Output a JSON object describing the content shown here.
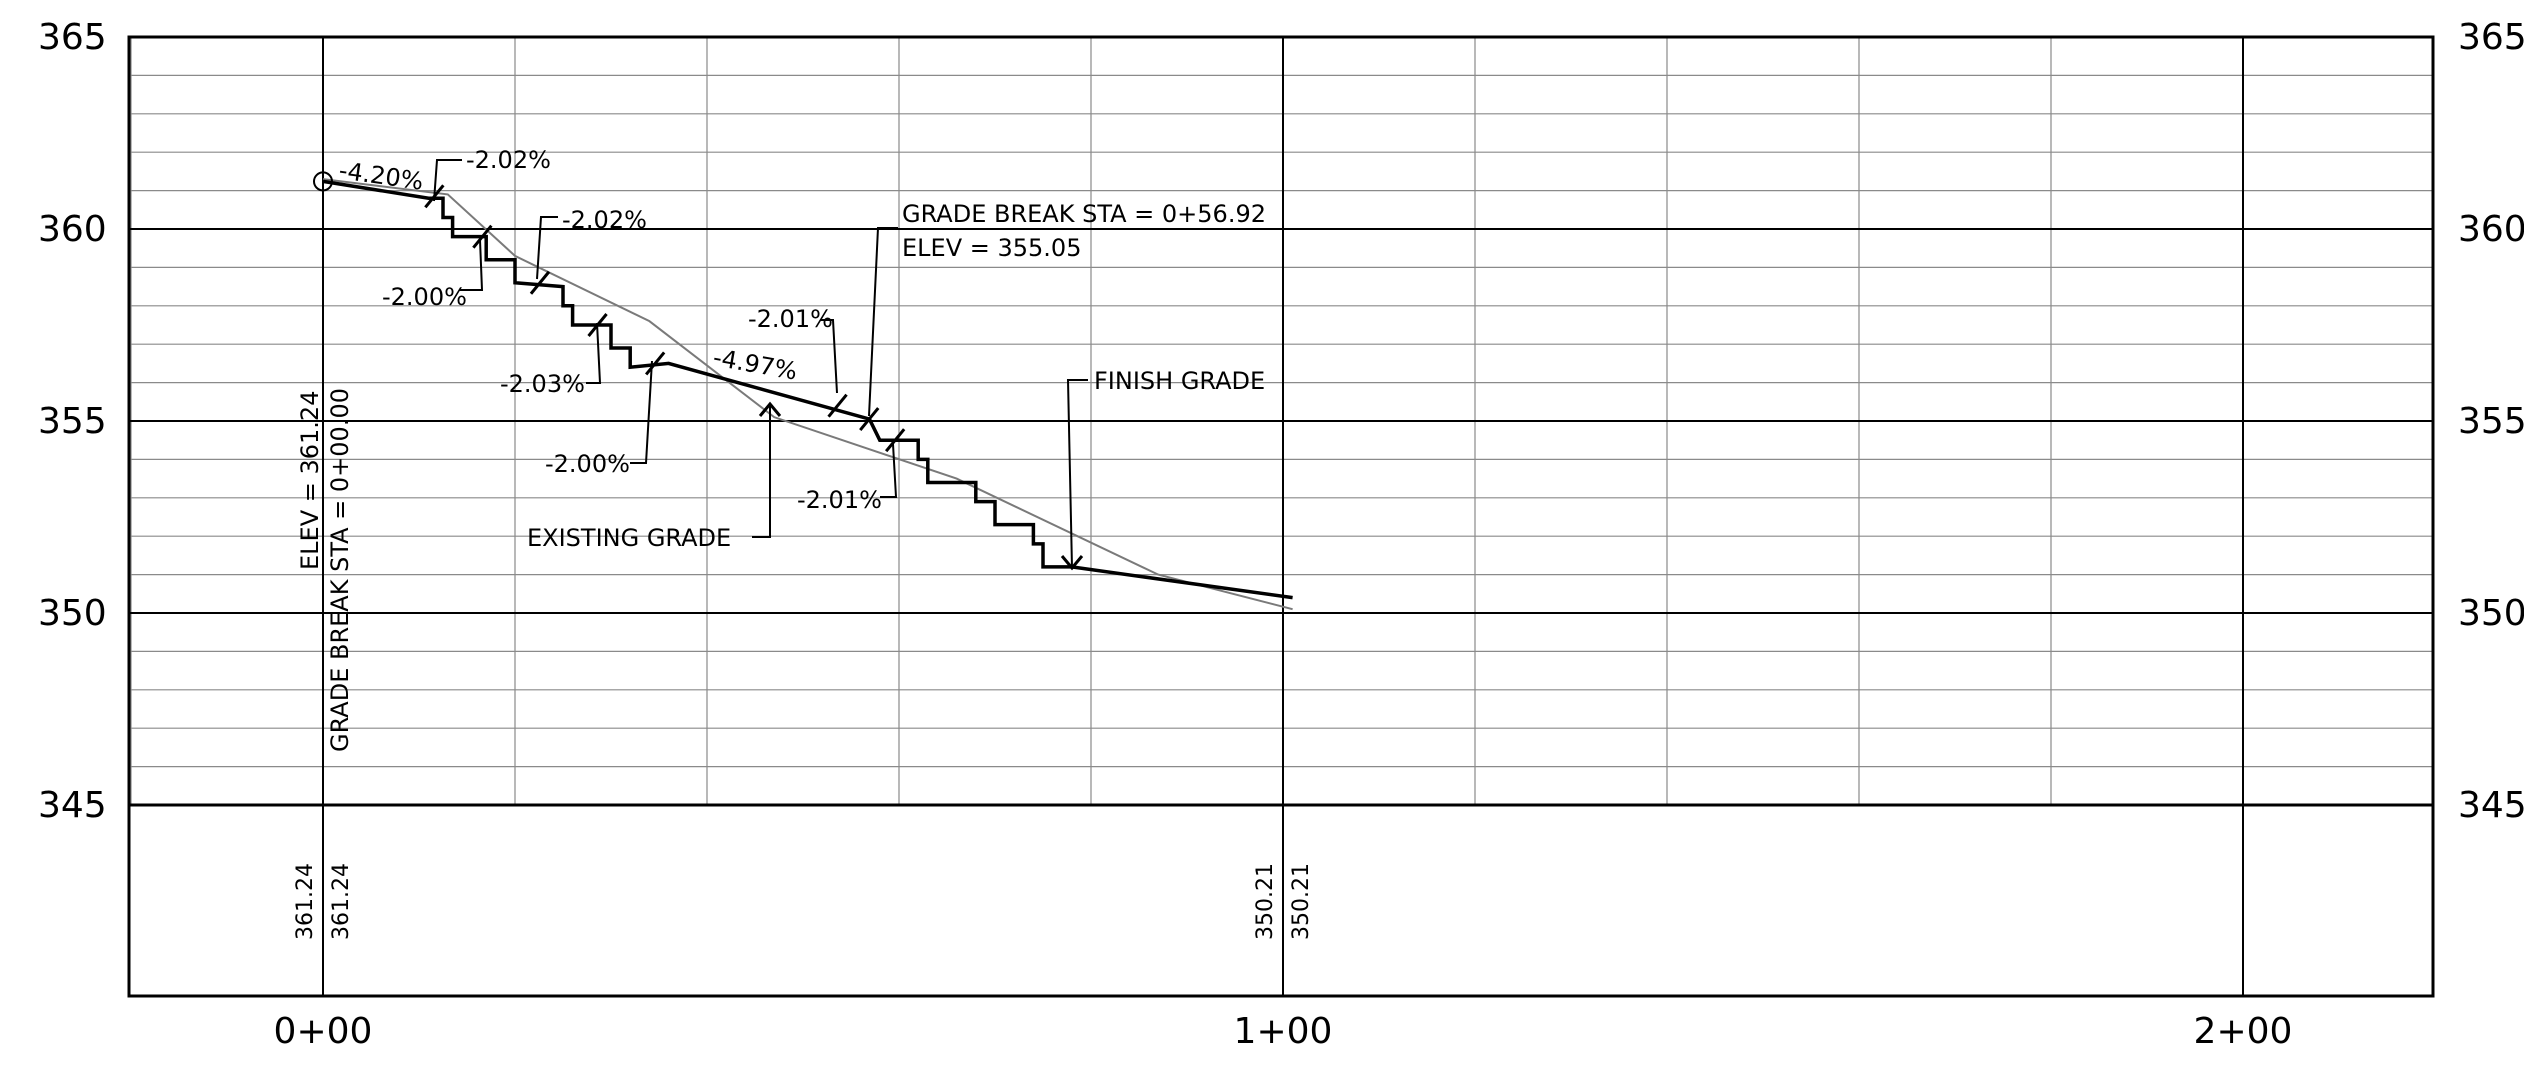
{
  "chart_data": {
    "type": "profile",
    "x_axis": {
      "ticks": [
        0,
        100,
        200
      ],
      "tick_labels": [
        "0+00",
        "1+00",
        "2+00"
      ],
      "range": [
        -20,
        220
      ]
    },
    "y_axis": {
      "range": [
        345,
        365
      ],
      "major_ticks": [
        345,
        350,
        355,
        360,
        365
      ],
      "tick_labels": [
        "345",
        "350",
        "355",
        "360",
        "365"
      ],
      "labels_both_sides": true,
      "minor_gridline_step": 1
    },
    "grid": true,
    "series": [
      {
        "name": "EXISTING GRADE",
        "style": "thin gray",
        "points": [
          [
            0,
            361.3
          ],
          [
            13,
            360.9
          ],
          [
            20,
            359.3
          ],
          [
            34,
            357.6
          ],
          [
            47,
            355.1
          ],
          [
            66,
            353.5
          ],
          [
            87,
            351.0
          ],
          [
            101,
            350.1
          ]
        ]
      },
      {
        "name": "FINISH GRADE",
        "style": "thick black stepped",
        "points": [
          [
            0,
            361.24
          ],
          [
            11,
            360.8
          ],
          [
            12.5,
            360.8
          ],
          [
            12.5,
            360.3
          ],
          [
            13.5,
            360.3
          ],
          [
            13.5,
            359.8
          ],
          [
            17,
            359.8
          ],
          [
            17,
            359.2
          ],
          [
            20,
            359.2
          ],
          [
            20,
            358.6
          ],
          [
            25,
            358.5
          ],
          [
            25,
            358.0
          ],
          [
            26,
            358.0
          ],
          [
            26,
            357.5
          ],
          [
            30,
            357.5
          ],
          [
            30,
            356.9
          ],
          [
            32,
            356.9
          ],
          [
            32,
            356.4
          ],
          [
            36,
            356.5
          ],
          [
            56.92,
            355.05
          ],
          [
            58,
            354.5
          ],
          [
            62,
            354.5
          ],
          [
            62,
            354.0
          ],
          [
            63,
            354.0
          ],
          [
            63,
            353.4
          ],
          [
            68,
            353.4
          ],
          [
            68,
            352.9
          ],
          [
            70,
            352.9
          ],
          [
            70,
            352.3
          ],
          [
            74,
            352.3
          ],
          [
            74,
            351.8
          ],
          [
            75,
            351.8
          ],
          [
            75,
            351.2
          ],
          [
            78,
            351.2
          ],
          [
            101,
            350.4
          ]
        ]
      }
    ],
    "grade_breaks": [
      {
        "station": 0,
        "elevation": 361.24
      },
      {
        "station": 56.92,
        "elevation": 355.05
      }
    ],
    "bottom_values": [
      {
        "station": 0,
        "values": [
          "361.24",
          "361.24"
        ]
      },
      {
        "station": 100,
        "values": [
          "350.21",
          "350.21"
        ]
      }
    ],
    "annotations": {
      "slope_labels": [
        "-4.20%",
        "-2.02%",
        "-2.02%",
        "-2.00%",
        "-2.03%",
        "-2.00%",
        "-4.97%",
        "-2.01%",
        "-2.01%"
      ],
      "callouts": [
        "GRADE BREAK STA = 0+56.92",
        "ELEV =  355.05",
        "FINISH GRADE",
        "EXISTING GRADE"
      ],
      "rotated": [
        "ELEV =  361.24",
        "GRADE BREAK STA = 0+00.00"
      ]
    }
  }
}
